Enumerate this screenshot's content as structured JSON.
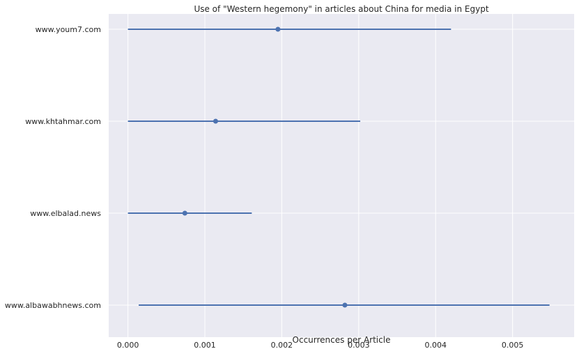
{
  "chart_data": {
    "type": "point-errorbar",
    "title": "Use of \"Western hegemony\" in articles about China for media in Egypt",
    "xlabel": "Occurrences per Article",
    "ylabel": "",
    "xlim": [
      -0.00025,
      0.0058
    ],
    "x_ticks": [
      "0.000",
      "0.001",
      "0.002",
      "0.003",
      "0.004",
      "0.005"
    ],
    "x_tick_values": [
      0,
      0.001,
      0.002,
      0.003,
      0.004,
      0.005
    ],
    "grid": true,
    "colors": {
      "background": "#eaeaf2",
      "grid": "#ffffff",
      "series": "#4c72b0"
    },
    "categories": [
      "www.youm7.com",
      "www.khtahmar.com",
      "www.elbalad.news",
      "www.albawabhnews.com"
    ],
    "points": [
      {
        "category": "www.youm7.com",
        "value": 0.00195,
        "ci_low": 0.0,
        "ci_high": 0.0042
      },
      {
        "category": "www.khtahmar.com",
        "value": 0.00114,
        "ci_low": 0.0,
        "ci_high": 0.00302
      },
      {
        "category": "www.elbalad.news",
        "value": 0.00074,
        "ci_low": 0.0,
        "ci_high": 0.00161
      },
      {
        "category": "www.albawabhnews.com",
        "value": 0.00282,
        "ci_low": 0.00014,
        "ci_high": 0.00548
      }
    ]
  }
}
